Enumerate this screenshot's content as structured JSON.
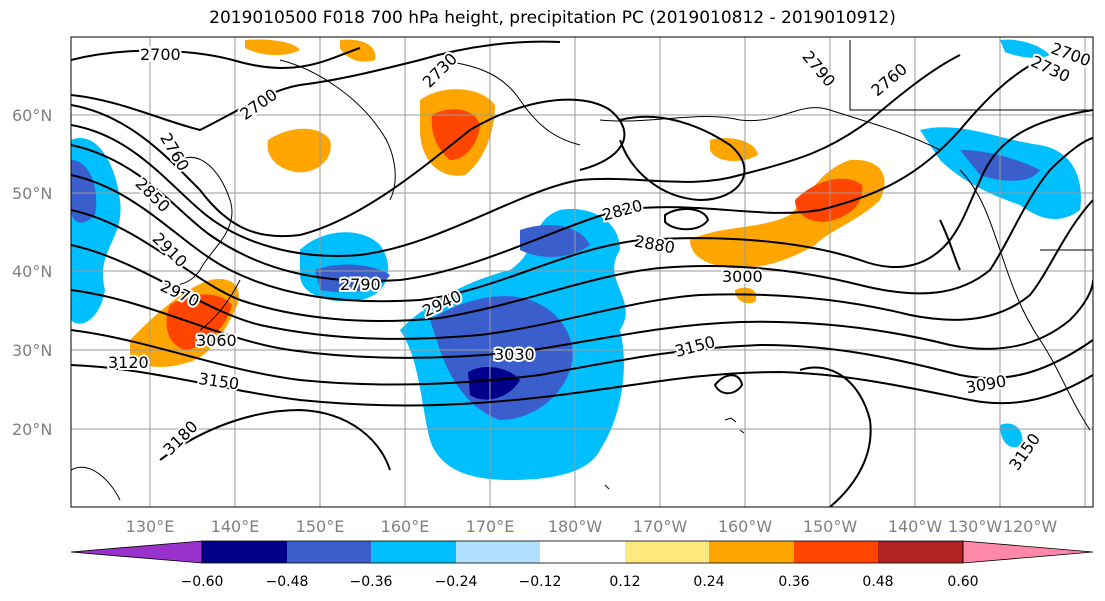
{
  "title": "2019010500 F018 700 hPa height, precipitation PC (2019010812 - 2019010912)",
  "lat_labels": [
    "60°N",
    "50°N",
    "40°N",
    "30°N",
    "20°N"
  ],
  "lon_labels": [
    "130°E",
    "140°E",
    "150°E",
    "160°E",
    "170°E",
    "180°W",
    "170°W",
    "160°W",
    "150°W",
    "140°W",
    "130°W",
    "120°W"
  ],
  "contour_labels": [
    "2700",
    "2730",
    "2700",
    "2760",
    "2850",
    "2910",
    "2970",
    "3060",
    "3120",
    "3150",
    "3180",
    "2790",
    "2940",
    "3030",
    "3150",
    "2820",
    "2880",
    "3000",
    "3090",
    "3150",
    "2790",
    "2760",
    "2730",
    "2700"
  ],
  "colorbar": {
    "ticks": [
      "−0.60",
      "−0.48",
      "−0.36",
      "−0.24",
      "−0.12",
      "0.12",
      "0.24",
      "0.36",
      "0.48",
      "0.60"
    ],
    "colors": [
      "#9932cc",
      "#00008b",
      "#3a5fcd",
      "#00bfff",
      "#b0e2ff",
      "#ffffff",
      "#ffe97f",
      "#ffa500",
      "#ff4500",
      "#b22222",
      "#ff88a8"
    ]
  }
}
